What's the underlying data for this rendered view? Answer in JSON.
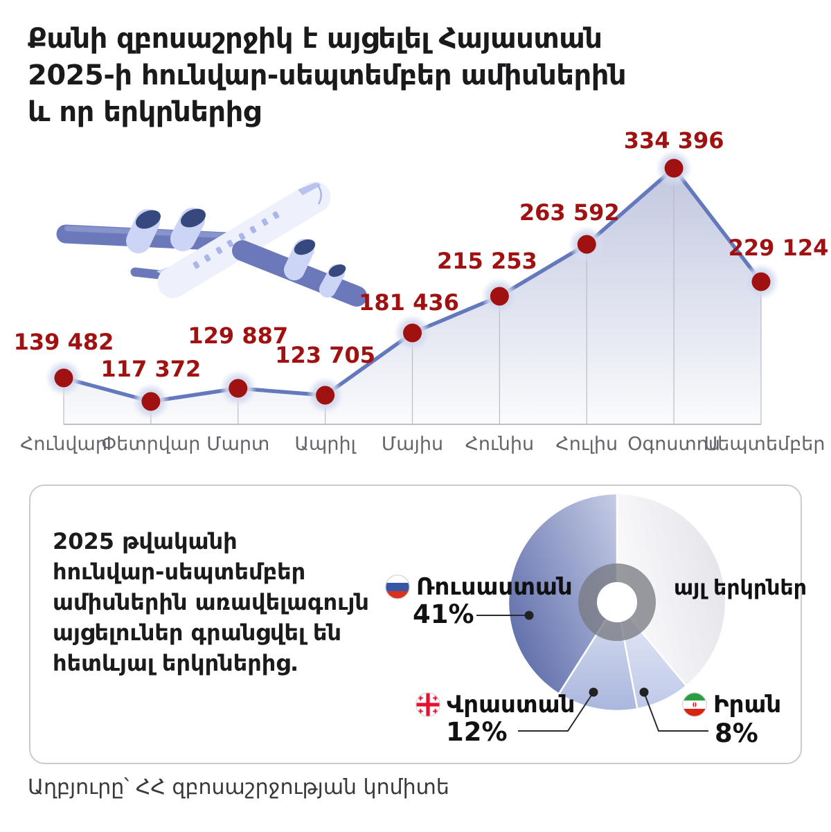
{
  "title": {
    "lines": [
      "Քանի զբոսաշրջիկ է այցելել Հայաստան",
      "2025-ի հունվար-սեպտեմբեր ամիսներին",
      "և որ երկրներից"
    ]
  },
  "chart_data": {
    "type": "area",
    "title": "Monthly visitors to Armenia, Jan–Sep 2025",
    "categories": [
      "Հունվար",
      "Փետրվար",
      "Մարտ",
      "Ապրիլ",
      "Մայիս",
      "Հունիս",
      "Հուլիս",
      "Օգոստոս",
      "Սեպտեմբեր"
    ],
    "values": [
      139482,
      117372,
      129887,
      123705,
      181436,
      215253,
      263592,
      334396,
      229124
    ],
    "value_labels": [
      "139 482",
      "117 372",
      "129 887",
      "123 705",
      "181 436",
      "215 253",
      "263 592",
      "334 396",
      "229 124"
    ],
    "point_color": "#a01111",
    "line_color": "#6478bd",
    "label_color": "#a01111",
    "month_label_color": "#63646c",
    "grid": "off",
    "legend": "none"
  },
  "summary": {
    "lines": [
      "2025 թվականի",
      "հունվար-սեպտեմբեր",
      "ամիսներին առավելագույն",
      "այցելուներ գրանցվել են",
      "հետևյալ երկրներից."
    ]
  },
  "donut": {
    "type": "donut",
    "russia": {
      "label": "Ռուսաստան",
      "pct": 41,
      "pct_label": "41%"
    },
    "georgia": {
      "label": "Վրաստան",
      "pct": 12,
      "pct_label": "12%"
    },
    "iran": {
      "label": "Իրան",
      "pct": 8,
      "pct_label": "8%"
    },
    "other": {
      "label": "այլ երկրներ"
    }
  },
  "source": "Աղբյուրը՝ ՀՀ զբոսաշրջության կոմիտե"
}
